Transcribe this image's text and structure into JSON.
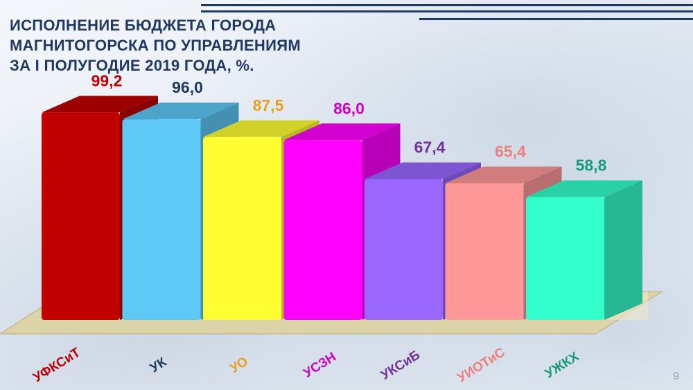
{
  "slide": {
    "title_lines": [
      "ИСПОЛНЕНИЕ БЮДЖЕТА ГОРОДА",
      "МАГНИТОГОРСКА ПО УПРАВЛЕНИЯМ",
      "ЗА  I ПОЛУГОДИЕ 2019 ГОДА, %."
    ],
    "page_number": "9"
  },
  "chart_data": {
    "type": "bar",
    "title": "ИСПОЛНЕНИЕ БЮДЖЕТА ГОРОДА МАГНИТОГОРСКА ПО УПРАВЛЕНИЯМ ЗА  I ПОЛУГОДИЕ 2019 ГОДА, %.",
    "categories": [
      "УФКСиТ",
      "УК",
      "УО",
      "УСЗН",
      "УКСиБ",
      "УИОТиС",
      "УЖКХ"
    ],
    "values": [
      99.2,
      96.0,
      87.5,
      86.0,
      67.4,
      65.4,
      58.8
    ],
    "value_labels": [
      "99,2",
      "96,0",
      "87,5",
      "86,0",
      "67,4",
      "65,4",
      "58,8"
    ],
    "colors": [
      "#c00000",
      "#5ec8f7",
      "#ffff33",
      "#ff00ff",
      "#9966ff",
      "#ff9999",
      "#33ffcc"
    ],
    "label_colors": [
      "#c00000",
      "#1f3864",
      "#e8a020",
      "#cc00cc",
      "#7030a0",
      "#f08080",
      "#139b7a"
    ],
    "xlabel": "",
    "ylabel": "",
    "ylim": [
      0,
      100
    ],
    "grid": false,
    "legend": "none"
  }
}
